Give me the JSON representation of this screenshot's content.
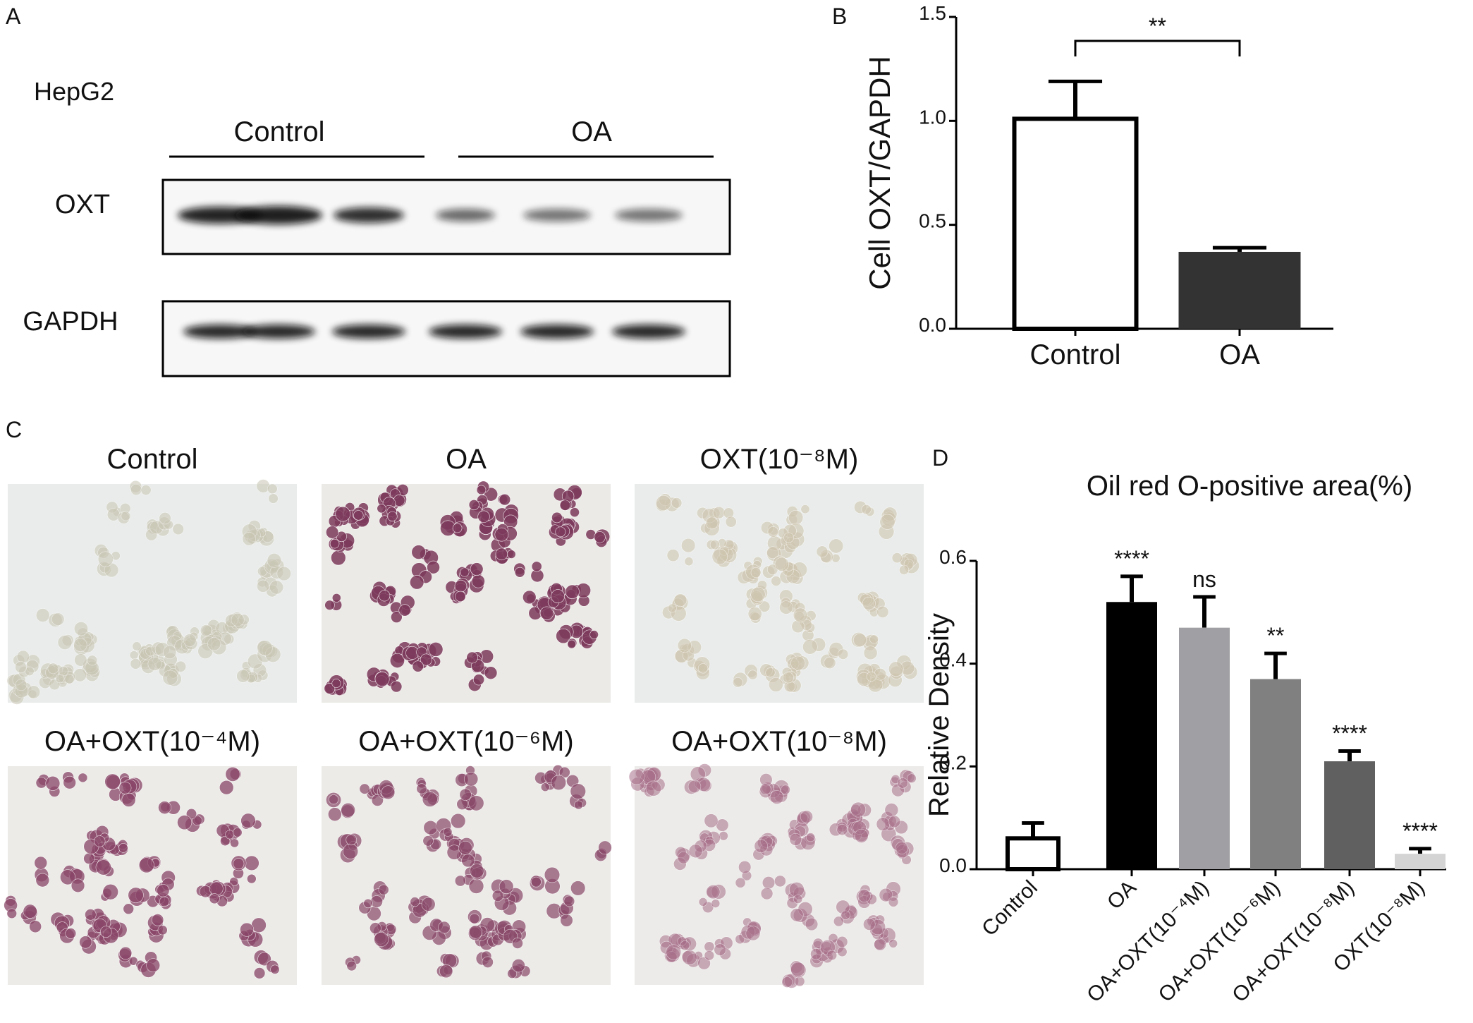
{
  "panels": {
    "a": "A",
    "b": "B",
    "c": "C",
    "d": "D"
  },
  "blot": {
    "cell_line": "HepG2",
    "groups": [
      "Control",
      "OA"
    ],
    "proteins": [
      "OXT",
      "GAPDH"
    ]
  },
  "images": {
    "labels": [
      "Control",
      "OA",
      "OXT(10⁻⁸M)",
      "OA+OXT(10⁻⁴M)",
      "OA+OXT(10⁻⁶M)",
      "OA+OXT(10⁻⁸M)"
    ]
  },
  "chart_data": [
    {
      "type": "bar",
      "y_label": "Cell OXT/GAPDH",
      "categories": [
        "Control",
        "OA"
      ],
      "values": [
        1.01,
        0.37
      ],
      "errors": [
        0.18,
        0.02
      ],
      "colors": [
        "#ffffff",
        "#333333"
      ],
      "edge_color": "#000000",
      "significance_bracket": "**",
      "ylim": [
        0,
        1.5
      ],
      "yticks": [
        {
          "value": 0,
          "label": "0.0"
        },
        {
          "value": 0.5,
          "label": "0.5"
        },
        {
          "value": 1,
          "label": "1.0"
        },
        {
          "value": 1.5,
          "label": "1.5"
        }
      ]
    },
    {
      "type": "bar",
      "title": "Oil red O-positive area(%)",
      "y_label": "Relative Density",
      "categories": [
        "Control",
        "OA",
        "OA+OXT(10⁻⁴M)",
        "OA+OXT(10⁻⁶M)",
        "OA+OXT(10⁻⁸M)",
        "OXT(10⁻⁸M)"
      ],
      "values": [
        0.06,
        0.52,
        0.47,
        0.37,
        0.21,
        0.03
      ],
      "errors": [
        0.03,
        0.05,
        0.06,
        0.05,
        0.02,
        0.01
      ],
      "significance": [
        null,
        "****",
        "ns",
        "**",
        "****",
        "****"
      ],
      "colors": [
        "#ffffff",
        "#000000",
        "#a0a0a4",
        "#808080",
        "#606060",
        "#d4d4d4"
      ],
      "edge_color": "#000000",
      "ylim": [
        0,
        0.6
      ],
      "yticks": [
        {
          "value": 0,
          "label": "0.0"
        },
        {
          "value": 0.2,
          "label": "0.2"
        },
        {
          "value": 0.4,
          "label": "0.4"
        },
        {
          "value": 0.6,
          "label": "0.6"
        }
      ]
    }
  ]
}
